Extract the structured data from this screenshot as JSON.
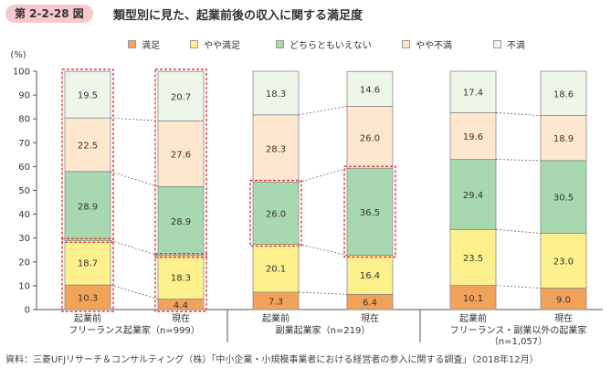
{
  "header": {
    "figure_number": "第 2-2-28 図",
    "title": "類型別に見た、起業前後の収入に関する満足度"
  },
  "legend": {
    "items": [
      {
        "label": "満足",
        "color": "#f2a35a"
      },
      {
        "label": "やや満足",
        "color": "#fdf18e"
      },
      {
        "label": "どちらともいえない",
        "color": "#a8d8b0"
      },
      {
        "label": "やや不満",
        "color": "#fde7cf"
      },
      {
        "label": "不満",
        "color": "#eef6ea"
      }
    ]
  },
  "chart_data": {
    "type": "bar",
    "stacked": true,
    "y_unit_label": "(%)",
    "ylim": [
      0,
      100
    ],
    "y_ticks": [
      0,
      10,
      20,
      30,
      40,
      50,
      60,
      70,
      80,
      90,
      100
    ],
    "categories": [
      "起業前",
      "現在",
      "起業前",
      "現在",
      "起業前",
      "現在"
    ],
    "groups": [
      {
        "label": "フリーランス起業家（n=999）",
        "label_line2": ""
      },
      {
        "label": "副業起業家（n=219）",
        "label_line2": ""
      },
      {
        "label": "フリーランス・副業以外の起業家",
        "label_line2": "（n=1,057）"
      }
    ],
    "series": [
      {
        "name": "満足",
        "color": "#f2a35a",
        "values": [
          10.3,
          4.4,
          7.3,
          6.4,
          10.1,
          9.0
        ]
      },
      {
        "name": "やや満足",
        "color": "#fdf18e",
        "values": [
          18.7,
          18.3,
          20.1,
          16.4,
          23.5,
          23.0
        ]
      },
      {
        "name": "どちらともいえない",
        "color": "#a8d8b0",
        "values": [
          28.9,
          28.9,
          26.0,
          36.5,
          29.4,
          30.5
        ]
      },
      {
        "name": "やや不満",
        "color": "#fde7cf",
        "values": [
          22.5,
          27.6,
          28.3,
          26.0,
          19.6,
          18.9
        ]
      },
      {
        "name": "不満",
        "color": "#eef6ea",
        "values": [
          19.5,
          20.7,
          18.3,
          14.6,
          17.4,
          18.6
        ]
      }
    ],
    "highlights": [
      {
        "bar": 0,
        "from": 29.0,
        "to": 100
      },
      {
        "bar": 1,
        "from": 22.7,
        "to": 100
      },
      {
        "bar": 0,
        "from": 0,
        "to": 29.0
      },
      {
        "bar": 1,
        "from": 0,
        "to": 22.7
      },
      {
        "bar": 2,
        "from": 27.4,
        "to": 53.4
      },
      {
        "bar": 3,
        "from": 22.8,
        "to": 59.3
      }
    ]
  },
  "footnote": "資料：三菱UFJリサーチ＆コンサルティング（株）「中小企業・小規模事業者における経営者の参入に関する調査」（2018年12月）"
}
